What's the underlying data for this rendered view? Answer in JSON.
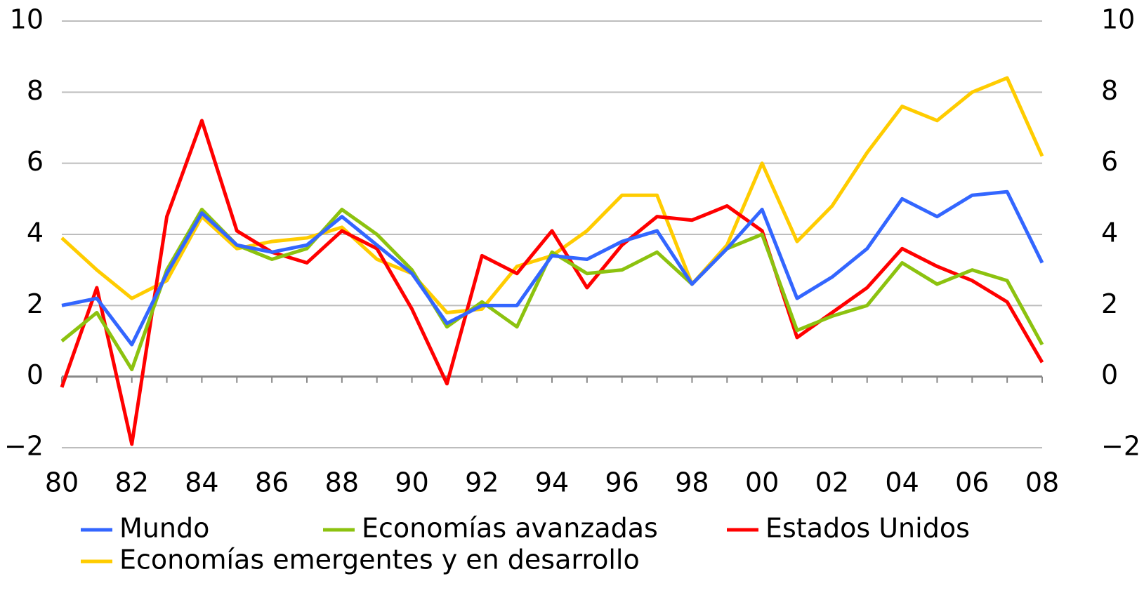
{
  "chart_data": {
    "type": "line",
    "categories": [
      "80",
      null,
      "82",
      null,
      "84",
      null,
      "86",
      null,
      "88",
      null,
      "90",
      null,
      "92",
      null,
      "94",
      null,
      "96",
      null,
      "98",
      null,
      "00",
      null,
      "02",
      null,
      "04",
      null,
      "06",
      null,
      "08"
    ],
    "series": [
      {
        "name": "Mundo",
        "color": "#3366ff",
        "values": [
          2.0,
          2.2,
          0.9,
          2.9,
          4.6,
          3.7,
          3.5,
          3.7,
          4.5,
          3.7,
          2.9,
          1.5,
          2.0,
          2.0,
          3.4,
          3.3,
          3.8,
          4.1,
          2.6,
          3.6,
          4.7,
          2.2,
          2.8,
          3.6,
          5.0,
          4.5,
          5.1,
          5.2,
          3.2
        ]
      },
      {
        "name": "Economías avanzadas",
        "color": "#8cc20f",
        "values": [
          1.0,
          1.8,
          0.2,
          3.0,
          4.7,
          3.7,
          3.3,
          3.6,
          4.7,
          4.0,
          3.0,
          1.4,
          2.1,
          1.4,
          3.5,
          2.9,
          3.0,
          3.5,
          2.6,
          3.6,
          4.0,
          1.3,
          1.7,
          2.0,
          3.2,
          2.6,
          3.0,
          2.7,
          0.9
        ]
      },
      {
        "name": "Estados Unidos",
        "color": "#ff0000",
        "values": [
          -0.3,
          2.5,
          -1.9,
          4.5,
          7.2,
          4.1,
          3.5,
          3.2,
          4.1,
          3.6,
          1.9,
          -0.2,
          3.4,
          2.9,
          4.1,
          2.5,
          3.7,
          4.5,
          4.4,
          4.8,
          4.1,
          1.1,
          1.8,
          2.5,
          3.6,
          3.1,
          2.7,
          2.1,
          0.4
        ]
      },
      {
        "name": "Economías emergentes y en desarrollo",
        "color": "#ffcc00",
        "values": [
          3.9,
          3.0,
          2.2,
          2.7,
          4.5,
          3.6,
          3.8,
          3.9,
          4.2,
          3.3,
          2.9,
          1.8,
          1.9,
          3.1,
          3.4,
          4.1,
          5.1,
          5.1,
          2.6,
          3.7,
          6.0,
          3.8,
          4.8,
          6.3,
          7.6,
          7.2,
          8.0,
          8.4,
          6.2
        ]
      }
    ],
    "ylim": [
      -2,
      10
    ],
    "yticks": [
      {
        "value": -2,
        "label": "−2"
      },
      0,
      2,
      4,
      6,
      8,
      10
    ],
    "y2lim": [
      -2,
      10
    ],
    "y2ticks": [
      {
        "value": -2,
        "label": "−2"
      },
      0,
      2,
      4,
      6,
      8,
      10
    ],
    "grid": true
  }
}
